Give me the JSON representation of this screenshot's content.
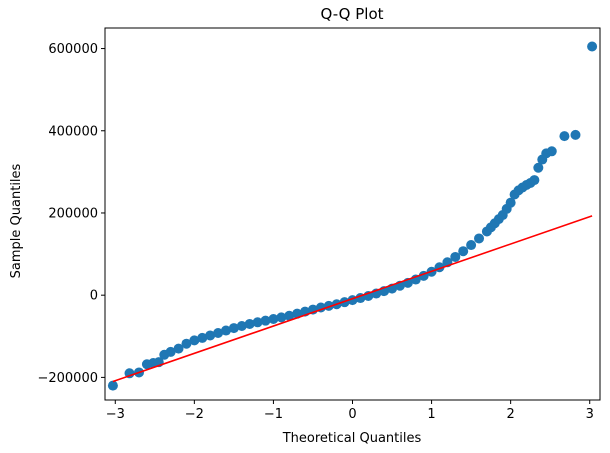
{
  "chart_data": {
    "type": "scatter",
    "title": "Q-Q Plot",
    "xlabel": "Theoretical Quantiles",
    "ylabel": "Sample Quantiles",
    "xlim": [
      -3.13,
      3.13
    ],
    "ylim": [
      -255000,
      650000
    ],
    "x_ticks": [
      -3,
      -2,
      -1,
      0,
      1,
      2,
      3
    ],
    "y_ticks": [
      -200000,
      0,
      200000,
      400000,
      600000
    ],
    "grid": false,
    "legend": "none",
    "colors": {
      "points": "#1f77b4",
      "reference_line": "#ff0000"
    },
    "reference_line": {
      "x": [
        -3.03,
        3.03
      ],
      "y": [
        -210000,
        193000
      ]
    },
    "points": {
      "x": [
        -3.03,
        -2.82,
        -2.7,
        -2.6,
        -2.52,
        -2.45,
        -2.38,
        -2.3,
        -2.2,
        -2.1,
        -2.0,
        -1.9,
        -1.8,
        -1.7,
        -1.6,
        -1.5,
        -1.4,
        -1.3,
        -1.2,
        -1.1,
        -1.0,
        -0.9,
        -0.8,
        -0.7,
        -0.6,
        -0.5,
        -0.4,
        -0.3,
        -0.2,
        -0.1,
        0.0,
        0.1,
        0.2,
        0.3,
        0.4,
        0.5,
        0.6,
        0.7,
        0.8,
        0.9,
        1.0,
        1.1,
        1.2,
        1.3,
        1.4,
        1.5,
        1.6,
        1.7,
        1.75,
        1.8,
        1.85,
        1.9,
        1.95,
        2.0,
        2.05,
        2.1,
        2.15,
        2.2,
        2.25,
        2.3,
        2.35,
        2.4,
        2.45,
        2.52,
        2.68,
        2.82,
        3.03
      ],
      "y": [
        -220000,
        -190000,
        -188000,
        -168000,
        -165000,
        -163000,
        -145000,
        -138000,
        -130000,
        -118000,
        -110000,
        -104000,
        -98000,
        -92000,
        -86000,
        -80000,
        -75000,
        -70000,
        -66000,
        -62000,
        -58000,
        -54000,
        -50000,
        -45000,
        -40000,
        -35000,
        -30000,
        -26000,
        -22000,
        -17000,
        -12000,
        -7000,
        -2000,
        4000,
        10000,
        16000,
        23000,
        30000,
        38000,
        47000,
        57000,
        68000,
        80000,
        93000,
        107000,
        122000,
        138000,
        155000,
        165000,
        175000,
        185000,
        195000,
        210000,
        225000,
        245000,
        255000,
        262000,
        268000,
        273000,
        280000,
        310000,
        330000,
        345000,
        350000,
        387000,
        390000,
        605000
      ]
    }
  }
}
